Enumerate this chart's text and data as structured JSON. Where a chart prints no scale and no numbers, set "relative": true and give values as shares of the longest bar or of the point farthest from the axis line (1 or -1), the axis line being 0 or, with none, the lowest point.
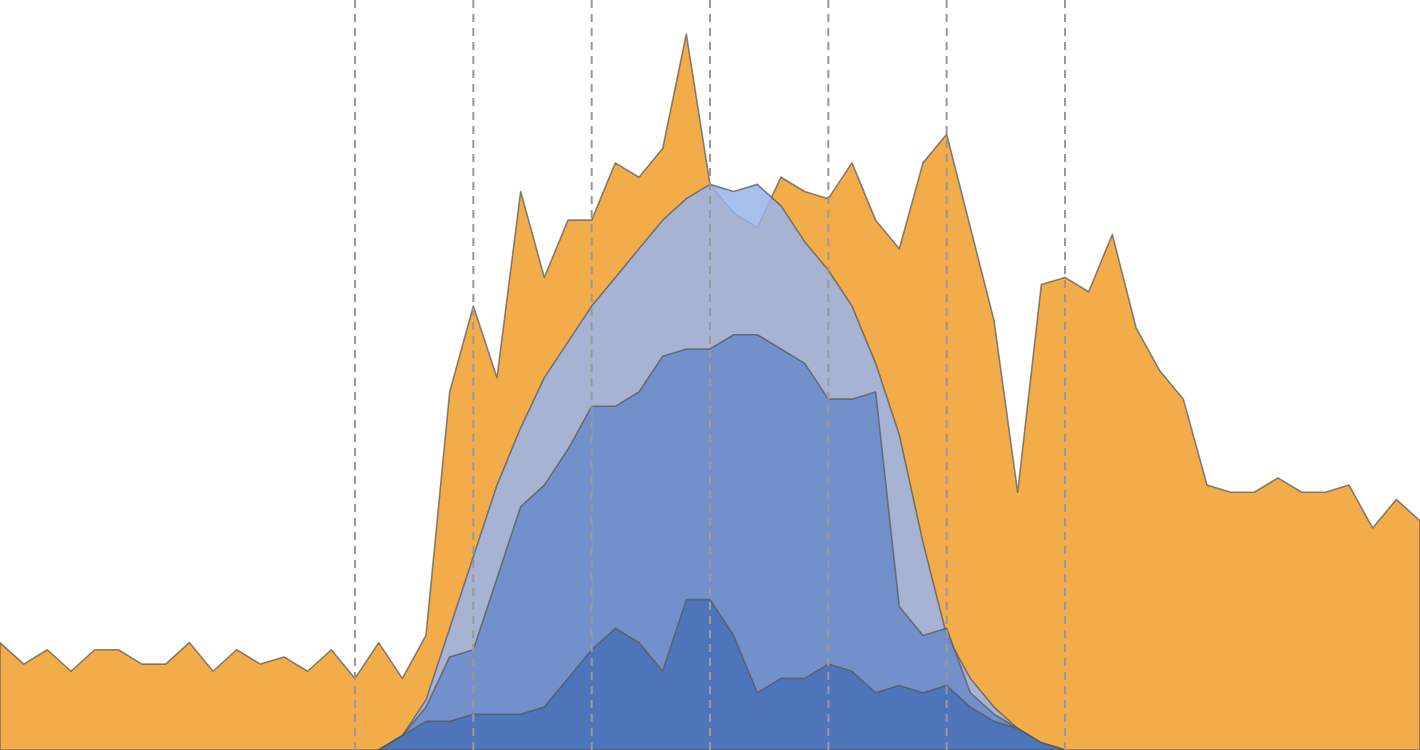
{
  "chart_data": {
    "type": "area",
    "relative": true,
    "categories": [
      null,
      null,
      null,
      null,
      null,
      null,
      null,
      null,
      null,
      null,
      null,
      null,
      null,
      null,
      null,
      null,
      null,
      null,
      null,
      null,
      null,
      null,
      null,
      null,
      null,
      null,
      null,
      null,
      null,
      null,
      null,
      null,
      null,
      null,
      null,
      null,
      null,
      null,
      null,
      null,
      null,
      null,
      null,
      null,
      null,
      null,
      null,
      null,
      null,
      null,
      null,
      null,
      null,
      null,
      null,
      null,
      null,
      null,
      null,
      null,
      null
    ],
    "series": [
      {
        "color": "#f2a840",
        "values": [
          0.15,
          0.12,
          0.14,
          0.11,
          0.14,
          0.14,
          0.12,
          0.12,
          0.15,
          0.11,
          0.14,
          0.12,
          0.13,
          0.11,
          0.14,
          0.1,
          0.15,
          0.1,
          0.16,
          0.5,
          0.62,
          0.52,
          0.78,
          0.66,
          0.74,
          0.74,
          0.82,
          0.8,
          0.84,
          1,
          0.79,
          0.75,
          0.73,
          0.8,
          0.78,
          0.77,
          0.82,
          0.74,
          0.7,
          0.82,
          0.86,
          0.73,
          0.6,
          0.36,
          0.65,
          0.66,
          0.64,
          0.72,
          0.59,
          0.53,
          0.49,
          0.37,
          0.36,
          0.36,
          0.38,
          0.36,
          0.36,
          0.37,
          0.31,
          0.35,
          0.32
        ]
      },
      {
        "color": "#98b4ea",
        "values": [
          null,
          null,
          null,
          null,
          null,
          null,
          null,
          null,
          null,
          null,
          null,
          null,
          null,
          null,
          null,
          null,
          0,
          0.02,
          0.07,
          0.17,
          0.27,
          0.37,
          0.45,
          0.52,
          0.57,
          0.62,
          0.66,
          0.7,
          0.74,
          0.77,
          0.79,
          0.78,
          0.79,
          0.76,
          0.71,
          0.67,
          0.62,
          0.54,
          0.44,
          0.29,
          0.16,
          0.1,
          0.06,
          0.03,
          0.01,
          0,
          null,
          null,
          null,
          null,
          null,
          null,
          null,
          null,
          null,
          null,
          null,
          null,
          null,
          null,
          null
        ]
      },
      {
        "color": "#6a8cca",
        "values": [
          null,
          null,
          null,
          null,
          null,
          null,
          null,
          null,
          null,
          null,
          null,
          null,
          null,
          null,
          null,
          null,
          0,
          0.02,
          0.06,
          0.13,
          0.14,
          0.24,
          0.34,
          0.37,
          0.42,
          0.48,
          0.48,
          0.5,
          0.55,
          0.56,
          0.56,
          0.58,
          0.58,
          0.56,
          0.54,
          0.49,
          0.49,
          0.5,
          0.2,
          0.16,
          0.17,
          0.08,
          0.05,
          0.03,
          0.01,
          0,
          null,
          null,
          null,
          null,
          null,
          null,
          null,
          null,
          null,
          null,
          null,
          null,
          null,
          null,
          null
        ]
      },
      {
        "color": "#4870b6",
        "values": [
          null,
          null,
          null,
          null,
          null,
          null,
          null,
          null,
          null,
          null,
          null,
          null,
          null,
          null,
          null,
          null,
          0,
          0.02,
          0.04,
          0.04,
          0.05,
          0.05,
          0.05,
          0.06,
          0.1,
          0.14,
          0.17,
          0.15,
          0.11,
          0.21,
          0.21,
          0.16,
          0.08,
          0.1,
          0.1,
          0.12,
          0.11,
          0.08,
          0.09,
          0.08,
          0.09,
          0.06,
          0.04,
          0.03,
          0.01,
          0,
          null,
          null,
          null,
          null,
          null,
          null,
          null,
          null,
          null,
          null,
          null,
          null,
          null,
          null,
          null
        ]
      }
    ],
    "grid": "x"
  }
}
